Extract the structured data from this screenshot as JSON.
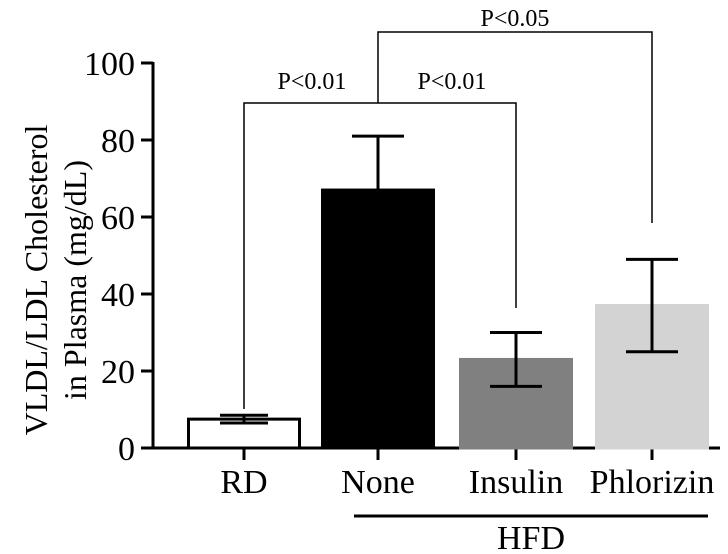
{
  "chart_data": {
    "type": "bar",
    "ylabel_line1": "VLDL/LDL Cholesterol",
    "ylabel_line2": "in Plasma (mg/dL)",
    "ylim": [
      0,
      100
    ],
    "yticks": [
      0,
      20,
      40,
      60,
      80,
      100
    ],
    "categories": [
      "RD",
      "None",
      "Insulin",
      "Phlorizin"
    ],
    "values": [
      7.5,
      67,
      23,
      37
    ],
    "error_low": [
      6.5,
      53,
      16,
      25
    ],
    "error_high": [
      8.5,
      81,
      30,
      49
    ],
    "bar_fill": [
      "#ffffff",
      "#000000",
      "#808080",
      "#d3d3d3"
    ],
    "bar_stroke": [
      "#000000",
      "#000000",
      "#808080",
      "#d3d3d3"
    ],
    "group": {
      "label": "HFD",
      "from": 1,
      "to": 3
    },
    "comparisons": [
      {
        "from": 0,
        "to": 1,
        "label": "P<0.01"
      },
      {
        "from": 1,
        "to": 2,
        "label": "P<0.01"
      },
      {
        "from": 1,
        "to": 3,
        "label": "P<0.05"
      }
    ],
    "grid": false,
    "legend": "none"
  }
}
